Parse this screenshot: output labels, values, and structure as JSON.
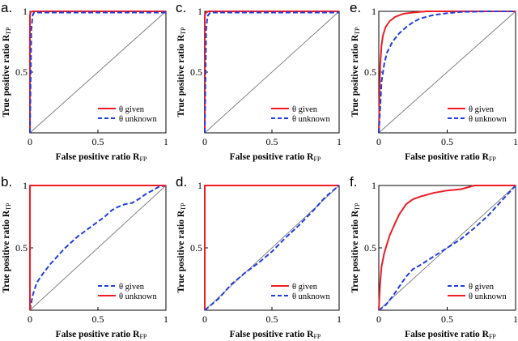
{
  "colors": {
    "red": "#ee1c25",
    "blue": "#1f3ee0",
    "axis": "#000000",
    "diag": "#777777"
  },
  "chart_data": [
    {
      "type": "line",
      "panel": "a.",
      "xlabel": "False positive ratio R",
      "xlabel_sub": "FP",
      "ylabel": "True positive ratio R",
      "ylabel_sub": "TP",
      "xlim": [
        0,
        1
      ],
      "ylim": [
        0,
        1
      ],
      "xticks": [
        "0",
        "0.5",
        "1"
      ],
      "yticks": [
        "0",
        "0.5",
        "1"
      ],
      "legend_position": "bottom-right",
      "series": [
        {
          "name": "θ given",
          "color": "red",
          "style": "solid",
          "x": [
            0,
            0,
            0.005,
            0.02,
            1
          ],
          "y": [
            0,
            0.97,
            0.995,
            1,
            1
          ]
        },
        {
          "name": "θ unknown",
          "color": "blue",
          "style": "dashed",
          "x": [
            0,
            0.01,
            0.02,
            0.03,
            1
          ],
          "y": [
            0,
            0.85,
            0.97,
            0.99,
            0.99
          ]
        }
      ]
    },
    {
      "type": "line",
      "panel": "b.",
      "xlabel": "False positive ratio R",
      "xlabel_sub": "FP",
      "ylabel": "True positive ratio R",
      "ylabel_sub": "TP",
      "xlim": [
        0,
        1
      ],
      "ylim": [
        0,
        1
      ],
      "xticks": [
        "0",
        "0.5",
        "1"
      ],
      "yticks": [
        "0",
        "0.5",
        "1"
      ],
      "legend_position": "bottom-right",
      "series": [
        {
          "name": "θ given",
          "color": "blue",
          "style": "dashed",
          "x": [
            0,
            0.02,
            0.05,
            0.1,
            0.15,
            0.2,
            0.25,
            0.3,
            0.35,
            0.4,
            0.45,
            0.5,
            0.55,
            0.6,
            0.65,
            0.7,
            0.75,
            0.8,
            0.85,
            0.9,
            0.95,
            1
          ],
          "y": [
            0,
            0.12,
            0.22,
            0.3,
            0.37,
            0.43,
            0.49,
            0.54,
            0.59,
            0.63,
            0.67,
            0.71,
            0.75,
            0.8,
            0.83,
            0.85,
            0.86,
            0.89,
            0.93,
            0.96,
            0.99,
            1
          ]
        },
        {
          "name": "θ unknown",
          "color": "red",
          "style": "solid",
          "x": [
            0,
            0,
            1
          ],
          "y": [
            0,
            1,
            1
          ]
        }
      ]
    },
    {
      "type": "line",
      "panel": "c.",
      "xlabel": "False positive ratio R",
      "xlabel_sub": "FP",
      "ylabel": "True positive ratio R",
      "ylabel_sub": "TP",
      "xlim": [
        0,
        1
      ],
      "ylim": [
        0,
        1
      ],
      "xticks": [
        "0",
        "0.5",
        "1"
      ],
      "yticks": [
        "0",
        "0.5",
        "1"
      ],
      "legend_position": "bottom-right",
      "series": [
        {
          "name": "θ given",
          "color": "red",
          "style": "solid",
          "x": [
            0,
            0,
            0.01,
            0.03,
            1
          ],
          "y": [
            0,
            0.97,
            0.99,
            1,
            1
          ]
        },
        {
          "name": "θ unknown",
          "color": "blue",
          "style": "dashed",
          "x": [
            0,
            0.01,
            0.02,
            0.04,
            1
          ],
          "y": [
            0,
            0.85,
            0.96,
            0.99,
            0.99
          ]
        }
      ]
    },
    {
      "type": "line",
      "panel": "d.",
      "xlabel": "False positive ratio R",
      "xlabel_sub": "FP",
      "ylabel": "True positive ratio R",
      "ylabel_sub": "TP",
      "xlim": [
        0,
        1
      ],
      "ylim": [
        0,
        1
      ],
      "xticks": [
        "0",
        "0.5",
        "1"
      ],
      "yticks": [
        "0",
        "0.5",
        "1"
      ],
      "legend_position": "bottom-right",
      "series": [
        {
          "name": "θ given",
          "color": "red",
          "style": "solid",
          "x": [
            0,
            0,
            1
          ],
          "y": [
            0,
            1,
            1
          ]
        },
        {
          "name": "θ unknown",
          "color": "blue",
          "style": "dashed",
          "x": [
            0,
            0.1,
            0.2,
            0.3,
            0.4,
            0.5,
            0.6,
            0.7,
            0.8,
            0.9,
            1
          ],
          "y": [
            0,
            0.09,
            0.21,
            0.3,
            0.38,
            0.47,
            0.58,
            0.68,
            0.79,
            0.91,
            1
          ]
        }
      ]
    },
    {
      "type": "line",
      "panel": "e.",
      "xlabel": "False positive ratio R",
      "xlabel_sub": "FP",
      "ylabel": "True positive ratio R",
      "ylabel_sub": "TP",
      "xlim": [
        0,
        1
      ],
      "ylim": [
        0,
        1
      ],
      "xticks": [
        "0",
        "0.5",
        "1"
      ],
      "yticks": [
        "0",
        "0.5",
        "1"
      ],
      "legend_position": "bottom-right",
      "series": [
        {
          "name": "θ given",
          "color": "red",
          "style": "solid",
          "x": [
            0,
            0.01,
            0.02,
            0.03,
            0.05,
            0.08,
            0.12,
            0.18,
            0.25,
            0.35,
            0.5,
            1
          ],
          "y": [
            0,
            0.55,
            0.72,
            0.8,
            0.87,
            0.92,
            0.955,
            0.98,
            0.99,
            1,
            1,
            1
          ]
        },
        {
          "name": "θ unknown",
          "color": "blue",
          "style": "dashed",
          "x": [
            0,
            0.01,
            0.02,
            0.04,
            0.06,
            0.1,
            0.15,
            0.2,
            0.25,
            0.3,
            0.4,
            0.5,
            0.6,
            0.8,
            1
          ],
          "y": [
            0,
            0.2,
            0.42,
            0.57,
            0.66,
            0.75,
            0.82,
            0.87,
            0.91,
            0.94,
            0.97,
            0.985,
            0.995,
            1,
            1
          ]
        }
      ]
    },
    {
      "type": "line",
      "panel": "f.",
      "xlabel": "False positive ratio R",
      "xlabel_sub": "FP",
      "ylabel": "True positive ratio R",
      "ylabel_sub": "TP",
      "xlim": [
        0,
        1
      ],
      "ylim": [
        0,
        1
      ],
      "xticks": [
        "0",
        "0.5",
        "1"
      ],
      "yticks": [
        "0",
        "0.5",
        "1"
      ],
      "legend_position": "bottom-right",
      "series": [
        {
          "name": "θ given",
          "color": "blue",
          "style": "dashed",
          "x": [
            0,
            0.05,
            0.1,
            0.15,
            0.2,
            0.25,
            0.3,
            0.4,
            0.5,
            0.6,
            0.7,
            0.8,
            0.9,
            1
          ],
          "y": [
            0,
            0.04,
            0.11,
            0.19,
            0.27,
            0.33,
            0.36,
            0.43,
            0.5,
            0.57,
            0.66,
            0.76,
            0.88,
            1
          ]
        },
        {
          "name": "θ unknown",
          "color": "red",
          "style": "solid",
          "x": [
            0,
            0.01,
            0.02,
            0.04,
            0.06,
            0.08,
            0.1,
            0.12,
            0.15,
            0.2,
            0.25,
            0.3,
            0.4,
            0.5,
            0.6,
            0.7,
            0.8,
            1
          ],
          "y": [
            0,
            0.22,
            0.35,
            0.46,
            0.53,
            0.6,
            0.65,
            0.7,
            0.77,
            0.85,
            0.89,
            0.91,
            0.94,
            0.96,
            0.97,
            1,
            1,
            1
          ]
        }
      ]
    }
  ]
}
